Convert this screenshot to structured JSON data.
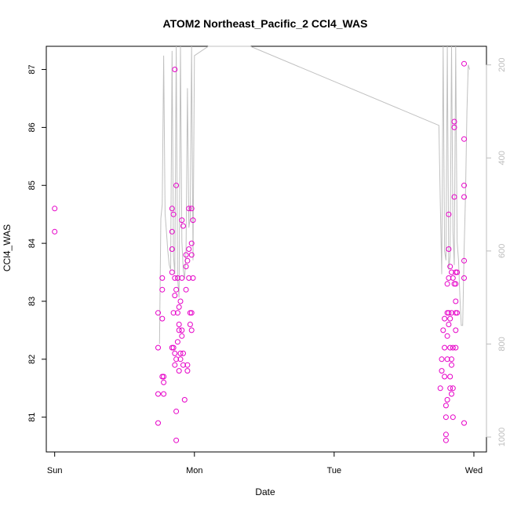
{
  "chart_data": {
    "type": "scatter",
    "title": "ATOM2 Northeast_Pacific_2 CCl4_WAS",
    "xlabel": "Date",
    "ylabel": "CCl4_WAS",
    "x_ticks": [
      {
        "label": "Sun",
        "value": 0
      },
      {
        "label": "Mon",
        "value": 1
      },
      {
        "label": "Tue",
        "value": 2
      },
      {
        "label": "Wed",
        "value": 3
      }
    ],
    "xlim": [
      -0.06,
      3.09
    ],
    "ylim": [
      80.4,
      87.4
    ],
    "y_ticks": [
      81,
      82,
      83,
      84,
      85,
      86,
      87
    ],
    "y2_label": "",
    "y2_ticks": [
      200,
      400,
      600,
      800,
      1000
    ],
    "y2lim": [
      1032,
      160
    ],
    "colors": {
      "points": "#e600c8",
      "pressure_line": "#c0c0c0",
      "right_axis": "#bdbdbd"
    },
    "series": [
      {
        "values": [
          [
            0.0,
            84.6
          ],
          [
            0.0,
            84.2
          ],
          [
            0.74,
            80.9
          ],
          [
            0.74,
            81.4
          ],
          [
            0.74,
            82.2
          ],
          [
            0.74,
            82.8
          ],
          [
            0.77,
            82.7
          ],
          [
            0.77,
            83.2
          ],
          [
            0.77,
            83.4
          ],
          [
            0.77,
            81.7
          ],
          [
            0.78,
            81.4
          ],
          [
            0.78,
            81.6
          ],
          [
            0.78,
            81.7
          ],
          [
            0.84,
            82.2
          ],
          [
            0.84,
            83.5
          ],
          [
            0.84,
            84.6
          ],
          [
            0.84,
            84.2
          ],
          [
            0.84,
            83.9
          ],
          [
            0.85,
            84.5
          ],
          [
            0.85,
            82.2
          ],
          [
            0.85,
            82.8
          ],
          [
            0.86,
            81.9
          ],
          [
            0.86,
            82.1
          ],
          [
            0.86,
            83.1
          ],
          [
            0.86,
            83.4
          ],
          [
            0.86,
            87.0
          ],
          [
            0.87,
            85.0
          ],
          [
            0.87,
            83.2
          ],
          [
            0.87,
            82.0
          ],
          [
            0.87,
            81.1
          ],
          [
            0.87,
            80.6
          ],
          [
            0.88,
            82.8
          ],
          [
            0.88,
            82.3
          ],
          [
            0.88,
            83.4
          ],
          [
            0.89,
            82.6
          ],
          [
            0.89,
            82.9
          ],
          [
            0.89,
            82.5
          ],
          [
            0.89,
            81.8
          ],
          [
            0.9,
            83.0
          ],
          [
            0.9,
            82.1
          ],
          [
            0.9,
            82.0
          ],
          [
            0.91,
            82.4
          ],
          [
            0.91,
            84.4
          ],
          [
            0.91,
            82.5
          ],
          [
            0.91,
            83.4
          ],
          [
            0.92,
            84.3
          ],
          [
            0.92,
            82.1
          ],
          [
            0.92,
            81.9
          ],
          [
            0.93,
            81.3
          ],
          [
            0.94,
            83.2
          ],
          [
            0.94,
            83.6
          ],
          [
            0.94,
            83.8
          ],
          [
            0.95,
            83.7
          ],
          [
            0.95,
            81.8
          ],
          [
            0.95,
            81.9
          ],
          [
            0.96,
            84.6
          ],
          [
            0.96,
            83.9
          ],
          [
            0.96,
            83.4
          ],
          [
            0.97,
            82.6
          ],
          [
            0.97,
            82.8
          ],
          [
            0.98,
            84.0
          ],
          [
            0.98,
            84.6
          ],
          [
            0.98,
            83.8
          ],
          [
            0.98,
            82.8
          ],
          [
            0.98,
            82.5
          ],
          [
            0.99,
            84.4
          ],
          [
            0.99,
            83.4
          ],
          [
            2.76,
            81.5
          ],
          [
            2.77,
            81.8
          ],
          [
            2.77,
            82.0
          ],
          [
            2.78,
            82.5
          ],
          [
            2.79,
            81.7
          ],
          [
            2.79,
            82.2
          ],
          [
            2.79,
            82.7
          ],
          [
            2.8,
            81.2
          ],
          [
            2.8,
            81.0
          ],
          [
            2.8,
            80.7
          ],
          [
            2.8,
            80.6
          ],
          [
            2.81,
            81.3
          ],
          [
            2.81,
            82.0
          ],
          [
            2.81,
            82.4
          ],
          [
            2.81,
            82.8
          ],
          [
            2.81,
            83.3
          ],
          [
            2.82,
            82.6
          ],
          [
            2.82,
            82.8
          ],
          [
            2.82,
            83.4
          ],
          [
            2.82,
            83.9
          ],
          [
            2.82,
            84.5
          ],
          [
            2.83,
            82.7
          ],
          [
            2.83,
            83.6
          ],
          [
            2.83,
            81.7
          ],
          [
            2.83,
            81.5
          ],
          [
            2.83,
            82.2
          ],
          [
            2.84,
            82.0
          ],
          [
            2.84,
            81.9
          ],
          [
            2.84,
            82.8
          ],
          [
            2.84,
            83.5
          ],
          [
            2.84,
            81.4
          ],
          [
            2.85,
            81.0
          ],
          [
            2.85,
            81.5
          ],
          [
            2.85,
            82.2
          ],
          [
            2.85,
            83.4
          ],
          [
            2.86,
            83.3
          ],
          [
            2.86,
            84.8
          ],
          [
            2.86,
            86.1
          ],
          [
            2.86,
            86.0
          ],
          [
            2.87,
            82.8
          ],
          [
            2.87,
            83.3
          ],
          [
            2.87,
            83.5
          ],
          [
            2.87,
            82.5
          ],
          [
            2.87,
            83.0
          ],
          [
            2.87,
            82.2
          ],
          [
            2.88,
            83.5
          ],
          [
            2.88,
            82.8
          ],
          [
            2.93,
            83.7
          ],
          [
            2.93,
            80.9
          ],
          [
            2.93,
            83.4
          ],
          [
            2.93,
            84.8
          ],
          [
            2.93,
            85.0
          ],
          [
            2.93,
            85.8
          ],
          [
            2.93,
            87.1
          ]
        ]
      },
      {
        "name": "",
        "axis": "right",
        "style": "line",
        "values": [
          [
            0.75,
            800
          ],
          [
            0.76,
            530
          ],
          [
            0.77,
            500
          ],
          [
            0.78,
            180
          ],
          [
            0.79,
            520
          ],
          [
            0.8,
            560
          ],
          [
            0.81,
            600
          ],
          [
            0.82,
            630
          ],
          [
            0.83,
            640
          ],
          [
            0.84,
            170
          ],
          [
            0.85,
            610
          ],
          [
            0.86,
            650
          ],
          [
            0.87,
            100
          ],
          [
            0.88,
            660
          ],
          [
            0.89,
            700
          ],
          [
            0.9,
            120
          ],
          [
            0.91,
            580
          ],
          [
            0.92,
            640
          ],
          [
            0.93,
            660
          ],
          [
            0.94,
            600
          ],
          [
            0.95,
            250
          ],
          [
            0.96,
            550
          ],
          [
            0.97,
            530
          ],
          [
            0.98,
            120
          ],
          [
            0.99,
            620
          ],
          [
            1.0,
            180
          ],
          [
            1.1,
            120
          ],
          [
            1.4,
            160
          ],
          [
            2.75,
            330
          ],
          [
            2.76,
            500
          ],
          [
            2.77,
            650
          ],
          [
            2.78,
            100
          ],
          [
            2.79,
            600
          ],
          [
            2.8,
            620
          ],
          [
            2.81,
            130
          ],
          [
            2.82,
            640
          ],
          [
            2.83,
            610
          ],
          [
            2.84,
            150
          ],
          [
            2.85,
            560
          ],
          [
            2.86,
            630
          ],
          [
            2.87,
            120
          ],
          [
            2.88,
            580
          ],
          [
            2.89,
            620
          ],
          [
            2.9,
            700
          ],
          [
            2.91,
            760
          ],
          [
            2.92,
            760
          ],
          [
            2.93,
            600
          ],
          [
            2.94,
            480
          ],
          [
            2.95,
            300
          ],
          [
            2.96,
            200
          ],
          [
            2.97,
            210
          ]
        ]
      }
    ]
  }
}
